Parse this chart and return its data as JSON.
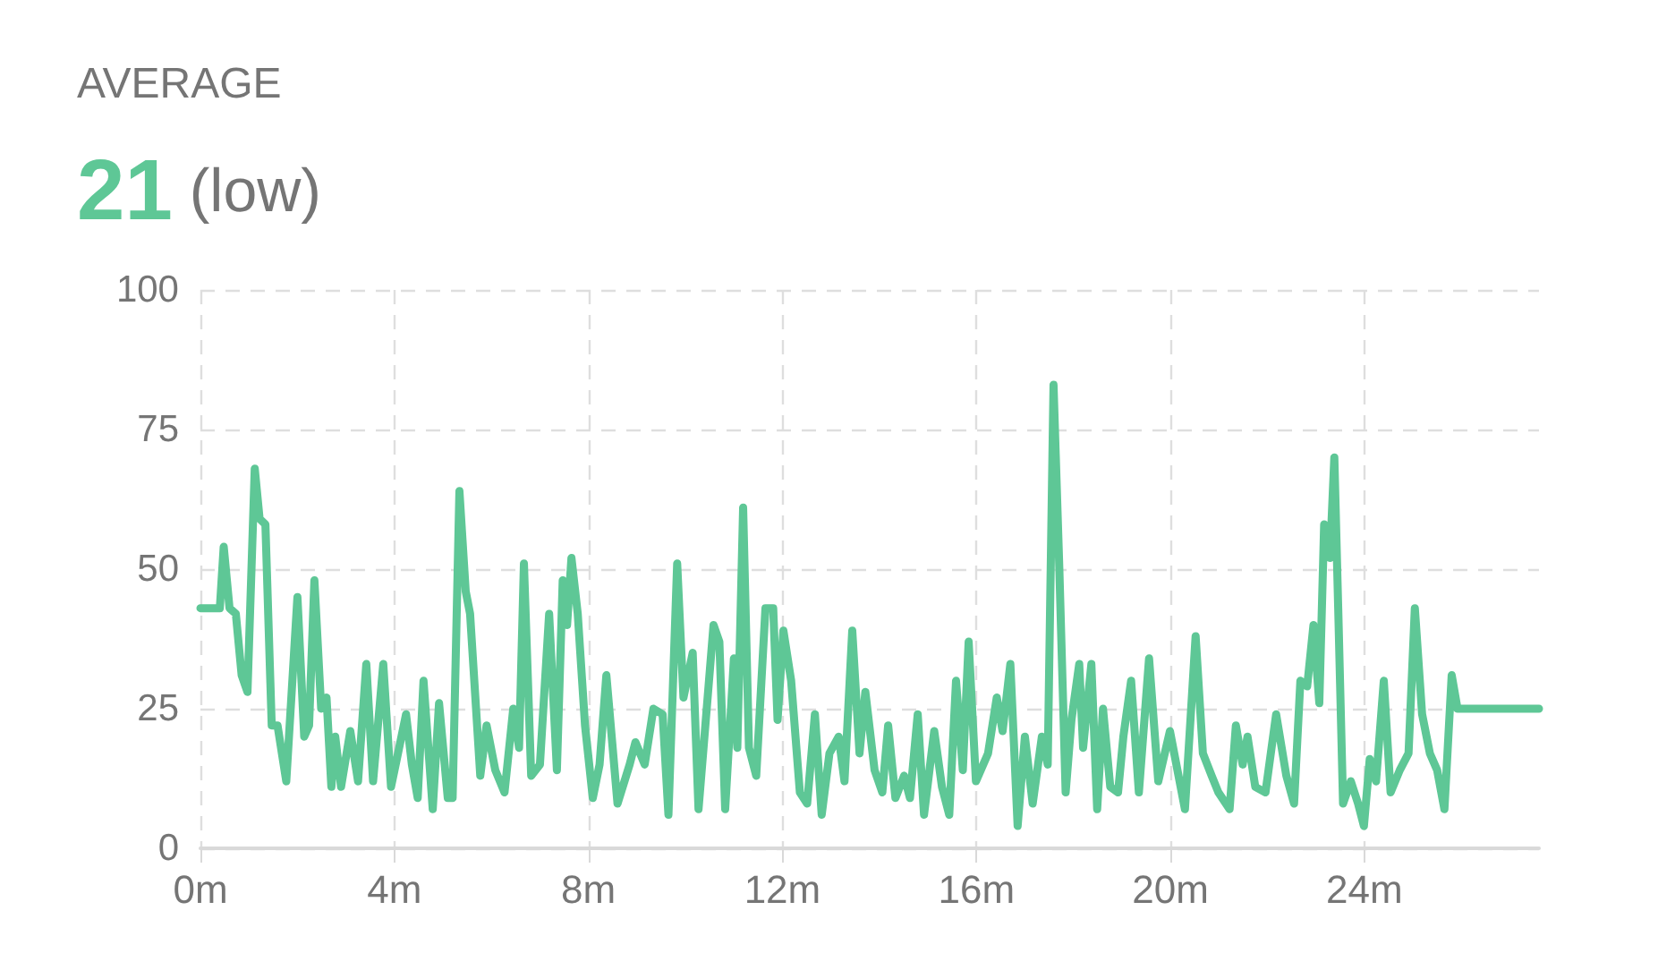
{
  "chart_data": {
    "type": "line",
    "title": "AVERAGE",
    "subtitle": "21 (low)",
    "x": [
      0,
      0.4,
      0.48,
      0.6,
      0.73,
      0.85,
      0.97,
      1.12,
      1.22,
      1.34,
      1.47,
      1.59,
      1.77,
      2.0,
      2.14,
      2.24,
      2.35,
      2.49,
      2.6,
      2.7,
      2.78,
      2.9,
      3.09,
      3.25,
      3.42,
      3.56,
      3.77,
      3.93,
      4.05,
      4.24,
      4.36,
      4.48,
      4.6,
      4.79,
      4.92,
      5.1,
      5.2,
      5.34,
      5.47,
      5.56,
      5.77,
      5.9,
      6.08,
      6.27,
      6.45,
      6.57,
      6.67,
      6.82,
      7.0,
      7.19,
      7.35,
      7.47,
      7.56,
      7.65,
      7.78,
      7.93,
      8.09,
      8.23,
      8.37,
      8.6,
      8.85,
      8.97,
      9.16,
      9.34,
      9.53,
      9.65,
      9.83,
      9.96,
      10.15,
      10.27,
      10.58,
      10.7,
      10.82,
      11.0,
      11.07,
      11.19,
      11.31,
      11.46,
      11.65,
      11.81,
      11.9,
      12.02,
      12.18,
      12.36,
      12.51,
      12.67,
      12.81,
      12.97,
      13.16,
      13.28,
      13.44,
      13.59,
      13.71,
      13.9,
      14.06,
      14.18,
      14.33,
      14.51,
      14.63,
      14.79,
      14.92,
      15.13,
      15.29,
      15.44,
      15.58,
      15.72,
      15.84,
      15.99,
      16.24,
      16.42,
      16.54,
      16.7,
      16.85,
      17.0,
      17.16,
      17.35,
      17.47,
      17.59,
      17.71,
      17.84,
      17.96,
      18.12,
      18.2,
      18.37,
      18.49,
      18.61,
      18.76,
      18.92,
      19.03,
      19.19,
      19.35,
      19.56,
      19.75,
      19.99,
      20.3,
      20.52,
      20.67,
      20.85,
      20.99,
      21.22,
      21.35,
      21.49,
      21.59,
      21.75,
      21.96,
      22.18,
      22.39,
      22.55,
      22.68,
      22.82,
      22.95,
      23.07,
      23.17,
      23.29,
      23.38,
      23.46,
      23.56,
      23.72,
      23.87,
      23.99,
      24.11,
      24.24,
      24.4,
      24.54,
      24.73,
      24.91,
      25.04,
      25.19,
      25.35,
      25.5,
      25.65,
      25.8,
      25.92,
      27.6
    ],
    "series": [
      {
        "color": "#5ec796",
        "values": [
          43,
          43,
          54,
          43,
          42,
          31,
          28,
          68,
          59,
          58,
          22,
          22,
          12,
          45,
          20,
          22,
          48,
          25,
          27,
          11,
          20,
          11,
          21,
          12,
          33,
          12,
          33,
          11,
          16,
          24,
          15,
          9,
          30,
          7,
          26,
          9,
          9,
          64,
          46,
          42,
          13,
          22,
          14,
          10,
          25,
          18,
          51,
          13,
          15,
          42,
          14,
          48,
          40,
          52,
          42,
          22,
          9,
          15,
          31,
          8,
          15,
          19,
          15,
          25,
          24,
          6,
          51,
          27,
          35,
          7,
          40,
          37,
          7,
          34,
          18,
          61,
          18,
          13,
          43,
          43,
          23,
          39,
          30,
          10,
          8,
          24,
          6,
          17,
          20,
          12,
          39,
          17,
          28,
          14,
          10,
          22,
          9,
          13,
          9,
          24,
          6,
          21,
          11,
          6,
          30,
          14,
          37,
          12,
          17,
          27,
          21,
          33,
          4,
          20,
          8,
          20,
          15,
          83,
          50,
          10,
          23,
          33,
          18,
          33,
          7,
          25,
          11,
          10,
          20,
          30,
          10,
          34,
          12,
          21,
          7,
          38,
          17,
          13,
          10,
          7,
          22,
          15,
          20,
          11,
          10,
          24,
          13,
          8,
          30,
          29,
          40,
          26,
          58,
          52,
          70,
          43,
          8,
          12,
          8,
          4,
          16,
          12,
          30,
          10,
          14,
          17,
          43,
          24,
          17,
          14,
          7,
          31,
          25,
          25
        ]
      }
    ],
    "xlim": [
      0,
      27.6
    ],
    "xticks": [
      {
        "value": 0,
        "label": "0m"
      },
      {
        "value": 4,
        "label": "4m"
      },
      {
        "value": 8,
        "label": "8m"
      },
      {
        "value": 12,
        "label": "12m"
      },
      {
        "value": 16,
        "label": "16m"
      },
      {
        "value": 20,
        "label": "20m"
      },
      {
        "value": 24,
        "label": "24m"
      }
    ],
    "ylim": [
      0,
      100
    ],
    "yticks": [
      0,
      25,
      50,
      75,
      100
    ],
    "grid": true,
    "marker": "none",
    "line_style": "solid"
  }
}
